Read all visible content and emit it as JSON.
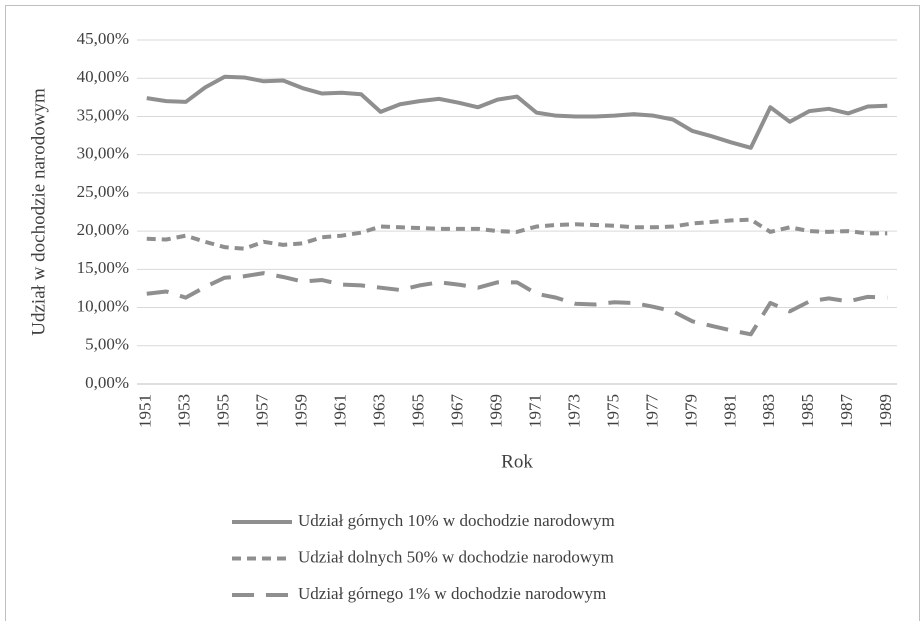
{
  "chart_data": {
    "type": "line",
    "xlabel": "Rok",
    "ylabel": "Udział w dochodzie narodowym",
    "categories": [
      "1951",
      null,
      "1953",
      null,
      "1955",
      null,
      "1957",
      null,
      "1959",
      null,
      "1961",
      null,
      "1963",
      null,
      "1965",
      null,
      "1967",
      null,
      "1969",
      null,
      "1971",
      null,
      "1973",
      null,
      "1975",
      null,
      "1977",
      null,
      "1979",
      null,
      "1981",
      null,
      "1983",
      null,
      "1985",
      null,
      "1987",
      null,
      "1989"
    ],
    "ylim": [
      0,
      45
    ],
    "yticks": [
      {
        "value": 0,
        "label": "0,00%"
      },
      {
        "value": 5,
        "label": "5,00%"
      },
      {
        "value": 10,
        "label": "10,00%"
      },
      {
        "value": 15,
        "label": "15,00%"
      },
      {
        "value": 20,
        "label": "20,00%"
      },
      {
        "value": 25,
        "label": "25,00%"
      },
      {
        "value": 30,
        "label": "30,00%"
      },
      {
        "value": 35,
        "label": "35,00%"
      },
      {
        "value": 40,
        "label": "40,00%"
      },
      {
        "value": 45,
        "label": "45,00%"
      }
    ],
    "grid": true,
    "legend": "bottom",
    "series": [
      {
        "name": "Udział górnych 10% w dochodzie narodowym",
        "color": "#8f8f8f",
        "dash": "solid",
        "values": [
          37.4,
          37.0,
          36.9,
          38.8,
          40.2,
          40.1,
          39.6,
          39.7,
          38.7,
          38.0,
          38.1,
          37.9,
          35.6,
          36.6,
          37.0,
          37.3,
          36.8,
          36.2,
          37.2,
          37.6,
          35.5,
          35.1,
          35.0,
          35.0,
          35.1,
          35.3,
          35.1,
          34.6,
          33.1,
          32.4,
          31.6,
          30.9,
          36.2,
          34.3,
          35.7,
          36.0,
          35.4,
          36.3,
          36.4
        ]
      },
      {
        "name": "Udział dolnych 50% w dochodzie narodowym",
        "color": "#8f8f8f",
        "dash": "dashed",
        "values": [
          19.0,
          18.9,
          19.4,
          18.6,
          17.9,
          17.7,
          18.6,
          18.2,
          18.4,
          19.2,
          19.4,
          19.8,
          20.6,
          20.5,
          20.4,
          20.3,
          20.3,
          20.3,
          20.0,
          19.9,
          20.6,
          20.8,
          20.9,
          20.8,
          20.7,
          20.5,
          20.5,
          20.6,
          21.0,
          21.2,
          21.4,
          21.5,
          19.9,
          20.5,
          20.0,
          19.9,
          20.0,
          19.7,
          19.7
        ]
      },
      {
        "name": "Udział górnego 1% w dochodzie narodowym",
        "color": "#8f8f8f",
        "dash": "longdash",
        "values": [
          11.8,
          12.1,
          11.3,
          12.7,
          13.9,
          14.1,
          14.5,
          14.0,
          13.4,
          13.6,
          13.0,
          12.9,
          12.6,
          12.3,
          12.9,
          13.3,
          13.0,
          12.6,
          13.3,
          13.3,
          11.8,
          11.3,
          10.5,
          10.4,
          10.7,
          10.6,
          10.1,
          9.5,
          8.2,
          7.6,
          7.0,
          6.5,
          10.6,
          9.5,
          10.8,
          11.2,
          10.8,
          11.4,
          11.3
        ]
      }
    ]
  }
}
